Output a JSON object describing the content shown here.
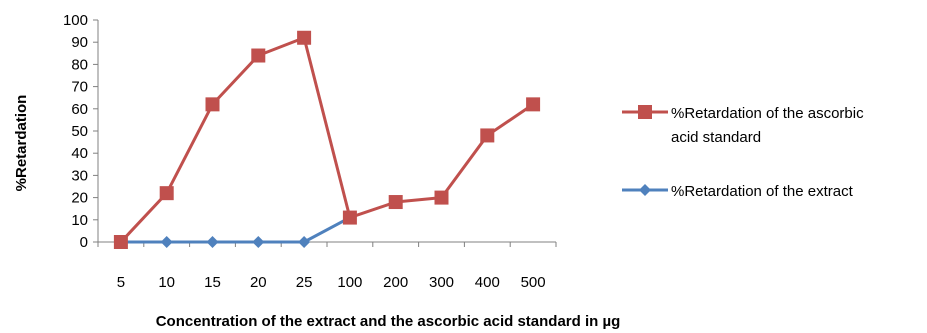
{
  "chart_data": {
    "type": "line",
    "categories": [
      "5",
      "10",
      "15",
      "20",
      "25",
      "100",
      "200",
      "300",
      "400",
      "500"
    ],
    "series": [
      {
        "name": "%Retardation of the ascorbic acid standard",
        "name_lines": [
          "%Retardation of the ascorbic",
          "acid standard"
        ],
        "color": "#c0504d",
        "marker": "square",
        "values": [
          0,
          22,
          62,
          84,
          92,
          11,
          18,
          20,
          48,
          62
        ]
      },
      {
        "name": "%Retardation of the extract",
        "name_lines": [
          "%Retardation of the extract"
        ],
        "color": "#4f81bd",
        "marker": "diamond",
        "values": [
          0,
          0,
          0,
          0,
          0,
          11,
          null,
          null,
          null,
          null
        ]
      }
    ],
    "xlabel": "Concentration of the extract and the ascorbic acid standard in µg",
    "ylabel": "%Retardation",
    "ylim": [
      0,
      100
    ],
    "yticks": [
      0,
      10,
      20,
      30,
      40,
      50,
      60,
      70,
      80,
      90,
      100
    ],
    "grid": false,
    "legend": "right"
  }
}
